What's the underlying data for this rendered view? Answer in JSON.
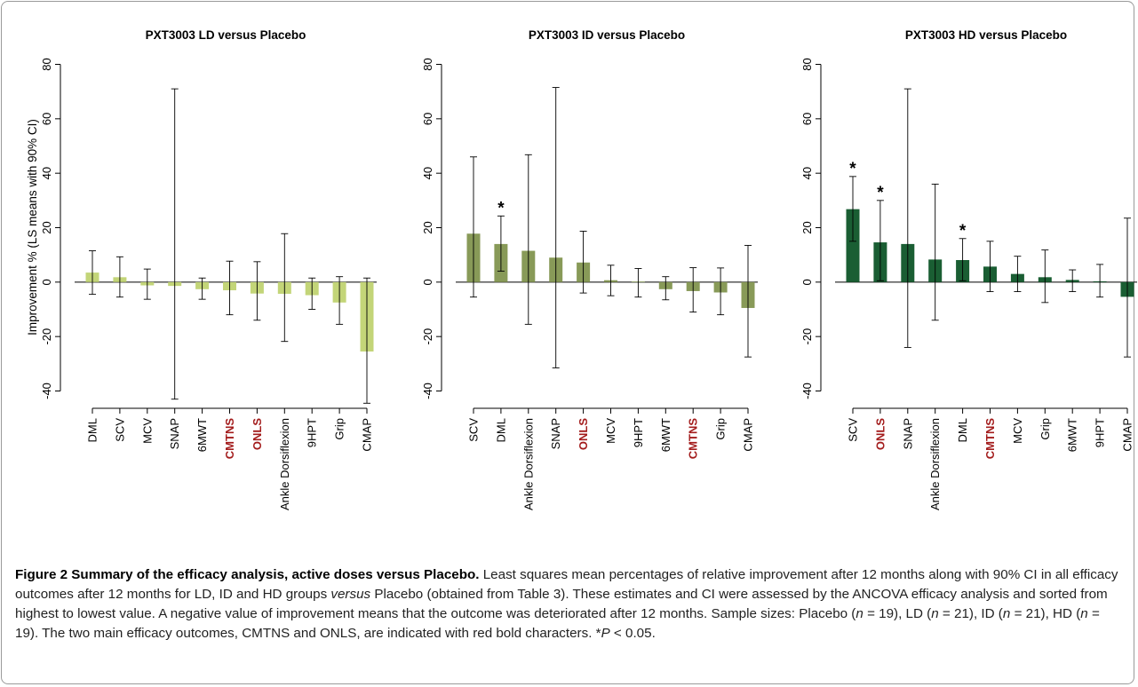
{
  "chart_data": [
    {
      "type": "bar",
      "title": "PXT3003 LD versus Placebo",
      "ylabel": "Improvement % (LS means with 90% CI)",
      "ylim": [
        -45,
        80
      ],
      "yticks": [
        -40,
        -20,
        0,
        20,
        40,
        60,
        80
      ],
      "color": "#c3d578",
      "categories": [
        "DML",
        "SCV",
        "MCV",
        "SNAP",
        "6MWT",
        "CMTNS",
        "ONLS",
        "Ankle Dorsiflexion",
        "9HPT",
        "Grip",
        "CMAP"
      ],
      "highlighted_categories": [
        "CMTNS",
        "ONLS"
      ],
      "values": [
        3.5,
        1.8,
        -1.2,
        -1.4,
        -2.6,
        -3.0,
        -4.2,
        -4.3,
        -4.8,
        -7.5,
        -25.5
      ],
      "ci_lower": [
        -4.5,
        -5.5,
        -6.3,
        -43.0,
        -6.3,
        -12.0,
        -14.0,
        -21.8,
        -10.0,
        -15.5,
        -44.5
      ],
      "ci_upper": [
        11.5,
        9.3,
        4.8,
        71.0,
        1.5,
        7.7,
        7.5,
        17.8,
        1.5,
        2.0,
        1.5
      ],
      "significant": []
    },
    {
      "type": "bar",
      "title": "PXT3003 ID versus Placebo",
      "ylabel": "",
      "ylim": [
        -45,
        80
      ],
      "yticks": [
        -40,
        -20,
        0,
        20,
        40,
        60,
        80
      ],
      "color": "#889a58",
      "categories": [
        "SCV",
        "DML",
        "Ankle Dorsiflexion",
        "SNAP",
        "ONLS",
        "MCV",
        "9HPT",
        "6MWT",
        "CMTNS",
        "Grip",
        "CMAP"
      ],
      "highlighted_categories": [
        "ONLS",
        "CMTNS"
      ],
      "values": [
        17.8,
        14.0,
        11.5,
        9.0,
        7.2,
        0.7,
        0.2,
        -2.6,
        -3.3,
        -3.8,
        -9.5
      ],
      "ci_lower": [
        -5.5,
        4.0,
        -15.5,
        -31.5,
        -4.0,
        -5.0,
        -5.5,
        -6.5,
        -11.0,
        -12.0,
        -27.5
      ],
      "ci_upper": [
        46.0,
        24.3,
        46.8,
        71.5,
        18.7,
        6.2,
        5.0,
        2.0,
        5.3,
        5.2,
        13.5
      ],
      "significant": [
        "DML"
      ]
    },
    {
      "type": "bar",
      "title": "PXT3003 HD versus Placebo",
      "ylabel": "",
      "ylim": [
        -45,
        80
      ],
      "yticks": [
        -40,
        -20,
        0,
        20,
        40,
        60,
        80
      ],
      "color": "#1a5e33",
      "categories": [
        "SCV",
        "ONLS",
        "SNAP",
        "Ankle Dorsiflexion",
        "DML",
        "CMTNS",
        "MCV",
        "Grip",
        "6MWT",
        "9HPT",
        "CMAP"
      ],
      "highlighted_categories": [
        "ONLS",
        "CMTNS"
      ],
      "values": [
        26.8,
        14.6,
        14.0,
        8.3,
        8.1,
        5.7,
        3.0,
        1.8,
        0.8,
        0.3,
        -5.4
      ],
      "ci_lower": [
        15.0,
        0.5,
        -24.0,
        -14.0,
        0.5,
        -3.5,
        -3.5,
        -7.5,
        -3.5,
        -5.5,
        -27.5
      ],
      "ci_upper": [
        38.8,
        30.0,
        71.0,
        36.0,
        16.0,
        15.0,
        9.5,
        11.8,
        4.5,
        6.5,
        23.5
      ],
      "significant": [
        "SCV",
        "ONLS",
        "DML"
      ]
    }
  ],
  "colors": {
    "highlight_label": "#a31c1c",
    "frame": "#9a9a9a"
  },
  "significance_marker": "*",
  "caption": {
    "title": "Figure 2 Summary of the efficacy analysis, active doses versus Placebo.",
    "text_before_italic": " Least squares mean percentages of relative improvement after 12 months along with 90% CI in all efficacy outcomes after 12 months for LD, ID and HD groups ",
    "italic_versus": "versus",
    "text_after_italic": " Placebo (obtained from Table 3). These estimates and CI were assessed by the ANCOVA efficacy analysis and sorted from highest to lowest value. A negative value of improvement means that the outcome was deteriorated after 12 months. Sample sizes: Placebo (",
    "n_symbol": "n",
    "sizes": [
      "= 19), LD (",
      "= 21), ID (",
      "= 21), HD (",
      "= 19). The two main efficacy outcomes, CMTNS and ONLS, are indicated with red bold characters. *"
    ],
    "p_symbol": "P",
    "p_text": " < 0.05."
  }
}
